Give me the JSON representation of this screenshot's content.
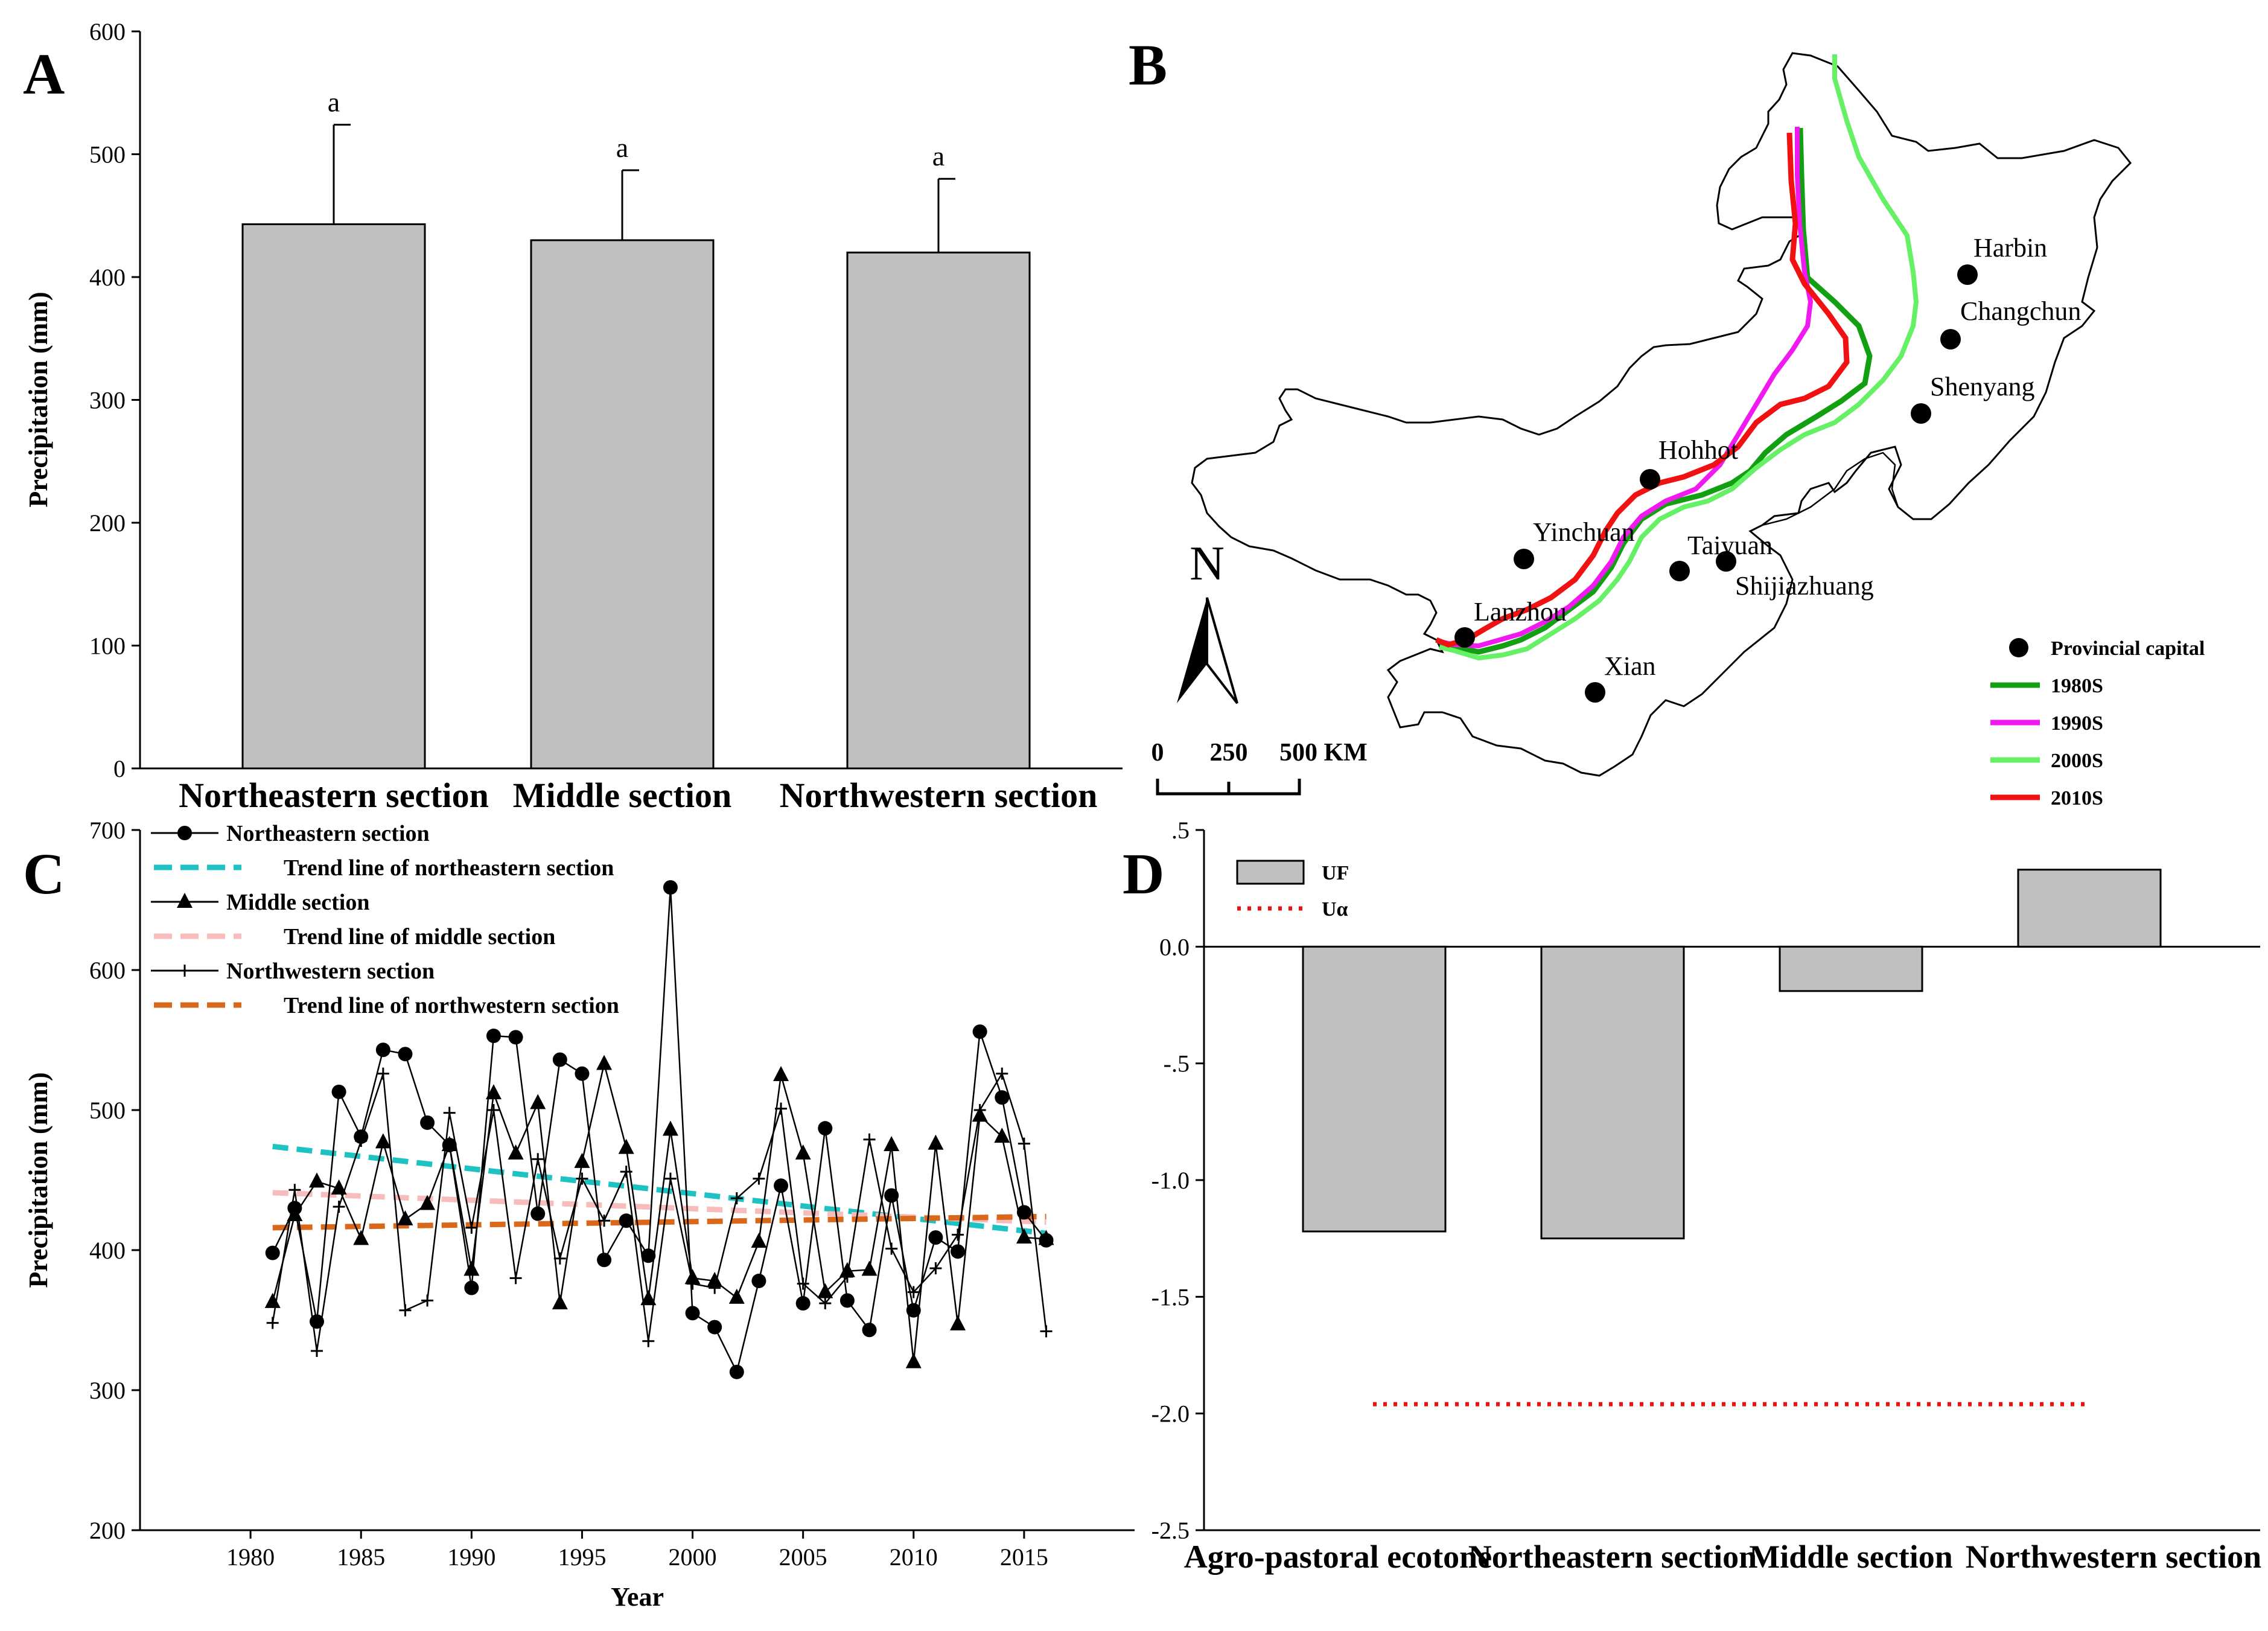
{
  "panel_labels": {
    "a": "A",
    "b": "B",
    "c": "C",
    "d": "D"
  },
  "chart_data": [
    {
      "id": "A",
      "type": "bar",
      "categories": [
        "Northeastern section",
        "Middle section",
        "Northwestern section"
      ],
      "values": [
        443,
        430,
        420
      ],
      "errors": [
        81,
        57,
        60
      ],
      "significance": [
        "a",
        "a",
        "a"
      ],
      "ylabel": "Precipitation (mm)",
      "ylim": [
        0,
        600
      ],
      "yticks": [
        0,
        100,
        200,
        300,
        400,
        500,
        600
      ]
    },
    {
      "id": "C",
      "type": "line",
      "xlabel": "Year",
      "ylabel": "Precipitation (mm)",
      "xlim": [
        1975,
        2020
      ],
      "ylim": [
        200,
        700
      ],
      "xticks": [
        1980,
        1985,
        1990,
        1995,
        2000,
        2005,
        2010,
        2015
      ],
      "yticks": [
        200,
        300,
        400,
        500,
        600,
        700
      ],
      "x": [
        1981,
        1982,
        1983,
        1984,
        1985,
        1986,
        1987,
        1988,
        1989,
        1990,
        1991,
        1992,
        1993,
        1994,
        1995,
        1996,
        1997,
        1998,
        1999,
        2000,
        2001,
        2002,
        2003,
        2004,
        2005,
        2006,
        2007,
        2008,
        2009,
        2010,
        2011,
        2012,
        2013,
        2014,
        2015,
        2016
      ],
      "series": [
        {
          "name": "Northeastern section",
          "marker": "circle",
          "values": [
            398,
            430,
            349,
            513,
            481,
            543,
            540,
            491,
            475,
            373,
            553,
            552,
            426,
            536,
            526,
            393,
            421,
            396,
            659,
            355,
            345,
            313,
            378,
            446,
            362,
            487,
            364,
            343,
            439,
            357,
            409,
            399,
            556,
            509,
            427,
            407
          ]
        },
        {
          "name": "Middle section",
          "marker": "triangle",
          "values": [
            363,
            425,
            449,
            444,
            408,
            477,
            422,
            433,
            475,
            386,
            512,
            469,
            505,
            362,
            463,
            533,
            473,
            365,
            486,
            380,
            378,
            366,
            406,
            525,
            469,
            370,
            385,
            386,
            475,
            320,
            476,
            347,
            496,
            481,
            409,
            408
          ]
        },
        {
          "name": "Northwestern section",
          "marker": "plus",
          "values": [
            348,
            443,
            328,
            431,
            478,
            526,
            357,
            364,
            498,
            416,
            500,
            380,
            465,
            394,
            451,
            421,
            456,
            335,
            451,
            376,
            373,
            437,
            451,
            501,
            376,
            362,
            381,
            479,
            401,
            370,
            387,
            411,
            500,
            526,
            476,
            342
          ]
        }
      ],
      "trend_lines": [
        {
          "name": "Trend line of northeastern section",
          "color": "#1fc2c2",
          "start": [
            1981,
            474
          ],
          "end": [
            2016,
            412
          ]
        },
        {
          "name": "Trend line of middle section",
          "color": "#f7bcbc",
          "start": [
            1981,
            441
          ],
          "end": [
            2016,
            420
          ]
        },
        {
          "name": "Trend line of northwestern section",
          "color": "#d9681a",
          "start": [
            1981,
            416
          ],
          "end": [
            2016,
            424
          ]
        }
      ]
    },
    {
      "id": "D",
      "type": "bar",
      "categories": [
        "Agro-pastoral ecotone",
        "Northeastern section",
        "Middle section",
        "Northwestern section"
      ],
      "values": [
        -1.22,
        -1.25,
        -0.19,
        0.33
      ],
      "u_alpha": -1.96,
      "legend": [
        "UF",
        "Uα"
      ],
      "ylim": [
        -2.5,
        0.5
      ],
      "yticks": [
        ".5",
        "0.0",
        "-.5",
        "-1.0",
        "-1.5",
        "-2.0",
        "-2.5"
      ]
    }
  ],
  "map": {
    "north_label": "N",
    "scale_labels": [
      "0",
      "250",
      "500 KM"
    ],
    "cities": [
      "Harbin",
      "Changchun",
      "Shenyang",
      "Hohhot",
      "Yinchuan",
      "Taiyuan",
      "Shijiazhuang",
      "Lanzhou",
      "Xian"
    ],
    "legend": [
      {
        "label": "Provincial capital",
        "color": "#000000"
      },
      {
        "label": "1980S",
        "color": "#12a012"
      },
      {
        "label": "1990S",
        "color": "#f01af0"
      },
      {
        "label": "2000S",
        "color": "#66f066"
      },
      {
        "label": "2010S",
        "color": "#f01212"
      }
    ]
  }
}
